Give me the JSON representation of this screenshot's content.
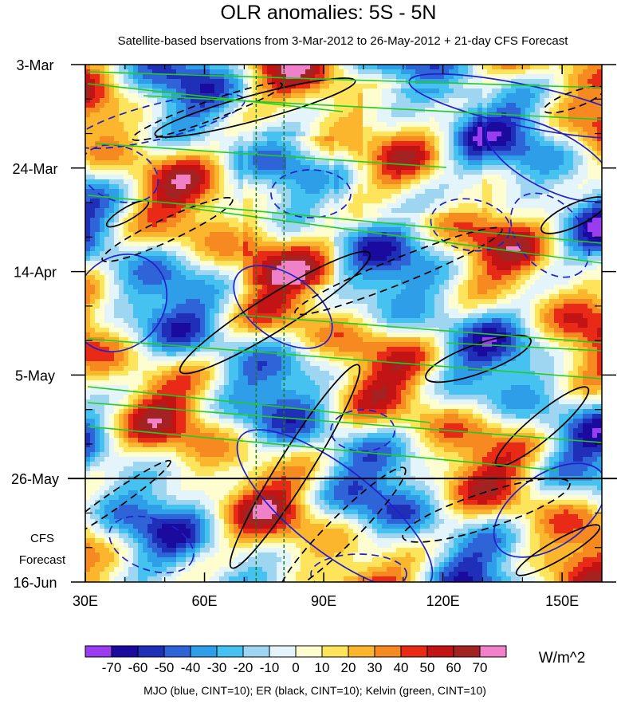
{
  "chart_data": {
    "type": "heatmap",
    "title": "OLR anomalies: 5S - 5N",
    "subtitle": "Satellite-based bservations from 3-Mar-2012 to 26-May-2012 + 21-day CFS Forecast",
    "x_tick_labels": [
      "30E",
      "60E",
      "90E",
      "120E",
      "150E"
    ],
    "x_ticks": [
      30,
      60,
      90,
      120,
      150
    ],
    "xlim": [
      30,
      160
    ],
    "y_tick_labels": [
      "3-Mar",
      "24-Mar",
      "14-Apr",
      "5-May",
      "26-May",
      "16-Jun"
    ],
    "y_ticks_days": [
      0,
      21,
      42,
      63,
      84,
      105
    ],
    "ylim_days": [
      0,
      105
    ],
    "forecast_label_lines": [
      "CFS",
      "Forecast"
    ],
    "observation_end": "26-May",
    "reference_lons": [
      73,
      80
    ],
    "colorbar": {
      "levels": [
        -70,
        -60,
        -50,
        -40,
        -30,
        -20,
        -10,
        0,
        10,
        20,
        30,
        40,
        50,
        60,
        70
      ],
      "level_labels": [
        "-70",
        "-60",
        "-50",
        "-40",
        "-30",
        "-20",
        "-10",
        "0",
        "10",
        "20",
        "30",
        "40",
        "50",
        "60",
        "70"
      ],
      "colors": [
        "#9a3df0",
        "#1a0a9e",
        "#1f2fb8",
        "#2f63d8",
        "#2f9ee8",
        "#45c2f0",
        "#9ed6f2",
        "#e4f4fb",
        "#fdfdd0",
        "#fde45a",
        "#fbb62e",
        "#f6891f",
        "#e82a17",
        "#c21414",
        "#a32323",
        "#f080c8"
      ],
      "units": "W/m^2"
    },
    "caption": "MJO (blue, CINT=10); ER (black, CINT=10); Kelvin (green, CINT=10)",
    "series_colors": {
      "mjo": "#2020cc",
      "er": "#000000",
      "kelvin": "#22cc22"
    }
  }
}
